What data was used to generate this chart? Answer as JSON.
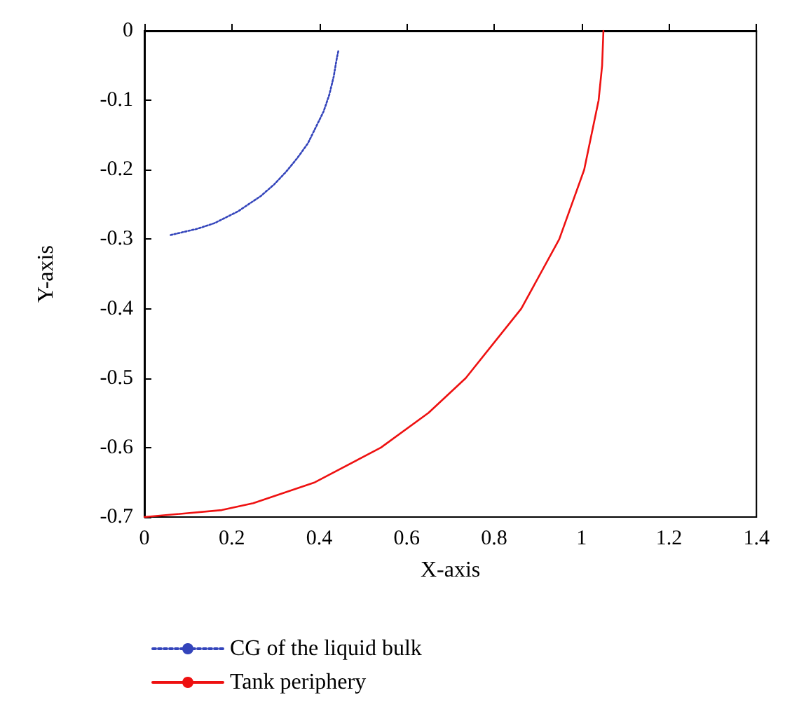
{
  "chart_data": {
    "type": "line",
    "xlabel": "X-axis",
    "ylabel": "Y-axis",
    "xlim": [
      0,
      1.4
    ],
    "ylim": [
      -0.7,
      0
    ],
    "xticks": [
      0,
      0.2,
      0.4,
      0.6,
      0.8,
      1,
      1.2,
      1.4
    ],
    "yticks": [
      -0.7,
      -0.6,
      -0.5,
      -0.4,
      -0.3,
      -0.2,
      -0.1,
      0
    ],
    "grid": false,
    "legend": "bottom left",
    "marker": "none",
    "series": [
      {
        "name": "CG of the liquid bulk",
        "color": "#3344bb",
        "line_style": "dotted",
        "x": [
          0.06,
          0.121,
          0.16,
          0.214,
          0.266,
          0.297,
          0.324,
          0.35,
          0.374,
          0.392,
          0.41,
          0.423,
          0.433,
          0.44,
          0.444
        ],
        "values": [
          -0.294,
          -0.285,
          -0.277,
          -0.26,
          -0.238,
          -0.221,
          -0.203,
          -0.183,
          -0.162,
          -0.139,
          -0.116,
          -0.092,
          -0.066,
          -0.04,
          -0.028
        ]
      },
      {
        "name": "Tank periphery",
        "color": "#ee1111",
        "line_style": "solid",
        "x": [
          0,
          0.177,
          0.249,
          0.39,
          0.541,
          0.65,
          0.735,
          0.862,
          0.949,
          1.006,
          1.039,
          1.047,
          1.05
        ],
        "values": [
          -0.7,
          -0.69,
          -0.68,
          -0.65,
          -0.6,
          -0.55,
          -0.5,
          -0.4,
          -0.3,
          -0.2,
          -0.1,
          -0.05,
          0
        ]
      }
    ]
  }
}
